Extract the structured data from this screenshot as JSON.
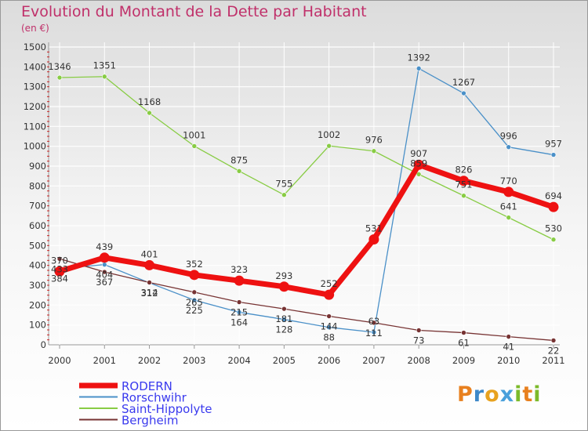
{
  "chart_data": {
    "type": "line",
    "title": "Evolution du Montant de la Dette par Habitant",
    "subtitle": "(en €)",
    "xlabel": "",
    "ylabel": "",
    "categories": [
      "2000",
      "2001",
      "2002",
      "2003",
      "2004",
      "2005",
      "2006",
      "2007",
      "2008",
      "2009",
      "2010",
      "2011"
    ],
    "ylim": [
      0,
      1500
    ],
    "yticks": [
      0,
      100,
      200,
      300,
      400,
      500,
      600,
      700,
      800,
      900,
      1000,
      1100,
      1200,
      1300,
      1400,
      1500
    ],
    "legend_position": "bottom-left",
    "series": [
      {
        "name": "RODERN",
        "color": "#ee1111",
        "values": [
          370,
          439,
          401,
          352,
          323,
          293,
          252,
          531,
          907,
          826,
          770,
          694
        ]
      },
      {
        "name": "Rorschwihr",
        "color": "#4a90c8",
        "values": [
          384,
          404,
          312,
          225,
          164,
          128,
          88,
          63,
          1392,
          1267,
          996,
          957
        ]
      },
      {
        "name": "Saint-Hippolyte",
        "color": "#88cc44",
        "values": [
          1346,
          1351,
          1168,
          1001,
          875,
          755,
          1002,
          976,
          859,
          751,
          641,
          530
        ]
      },
      {
        "name": "Bergheim",
        "color": "#773333",
        "values": [
          433,
          367,
          314,
          265,
          215,
          181,
          144,
          111,
          73,
          61,
          41,
          22
        ]
      }
    ]
  },
  "logo": {
    "p": "P",
    "r": "r",
    "o": "o",
    "x": "x",
    "i": "i",
    "t": "t",
    "i2": "i"
  }
}
